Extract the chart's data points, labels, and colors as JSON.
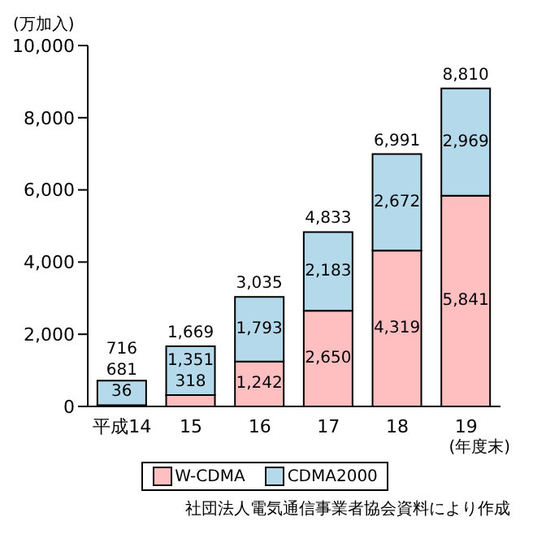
{
  "chart_data": {
    "type": "bar",
    "stacked": true,
    "xlabel": "(年度末)",
    "ylabel": "(万加入)",
    "categories": [
      "平成14",
      "15",
      "16",
      "17",
      "18",
      "19"
    ],
    "series": [
      {
        "name": "W-CDMA",
        "color": "#ffbfc0",
        "values": [
          36,
          318,
          1242,
          2650,
          4319,
          5841
        ],
        "value_labels": [
          "36",
          "318",
          "1,242",
          "2,650",
          "4,319",
          "5,841"
        ]
      },
      {
        "name": "CDMA2000",
        "color": "#b3d9ea",
        "values": [
          681,
          1351,
          1793,
          2183,
          2672,
          2969
        ],
        "value_labels": [
          "681",
          "1,351",
          "1,793",
          "2,183",
          "2,672",
          "2,969"
        ]
      }
    ],
    "totals": [
      "716",
      "1,669",
      "3,035",
      "4,833",
      "6,991",
      "8,810"
    ],
    "ylim": [
      0,
      10000
    ],
    "yticks": [
      {
        "value": 0,
        "label": "0"
      },
      {
        "value": 2000,
        "label": "2,000"
      },
      {
        "value": 4000,
        "label": "4,000"
      },
      {
        "value": 6000,
        "label": "6,000"
      },
      {
        "value": 8000,
        "label": "8,000"
      },
      {
        "value": 10000,
        "label": "10,000"
      }
    ],
    "grid": false,
    "legend": "bottom",
    "annotations": [
      "社団法人電気通信事業者協会資料により作成"
    ]
  }
}
